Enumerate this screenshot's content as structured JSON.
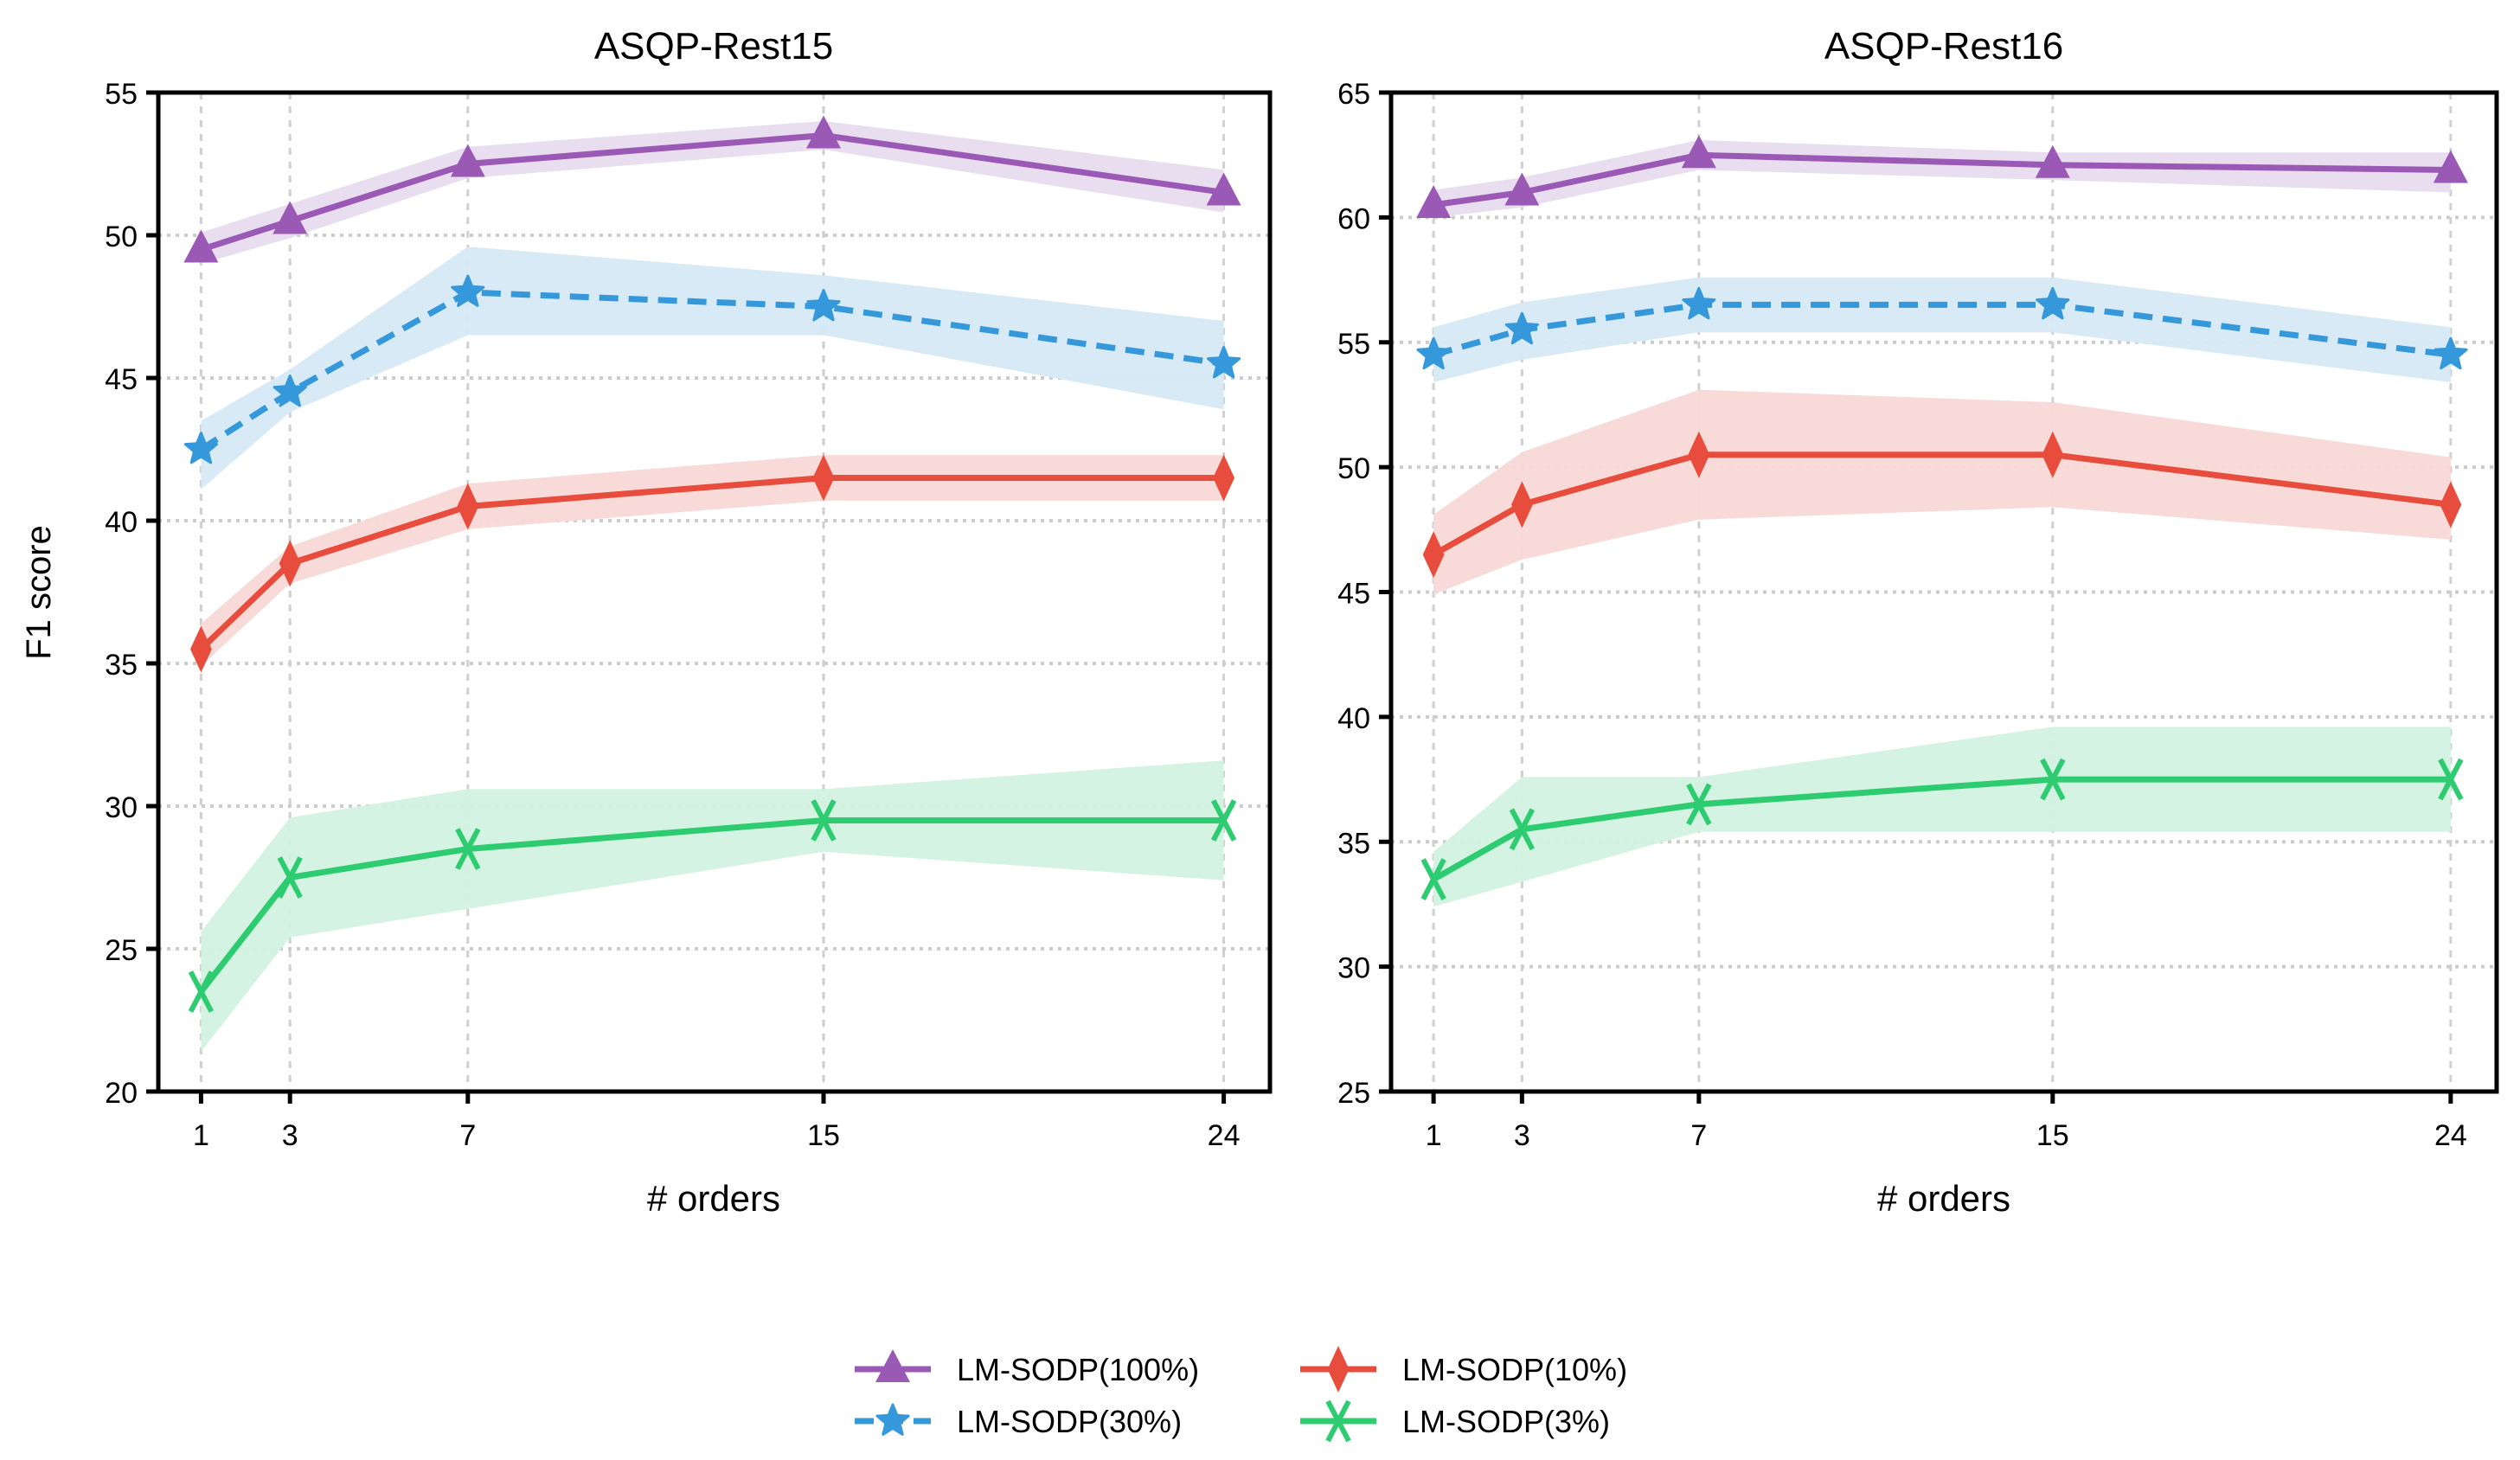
{
  "chart_data": [
    {
      "type": "line",
      "title": "ASQP-Rest15",
      "xlabel": "# orders",
      "ylabel": "F1 score",
      "x": [
        1,
        3,
        7,
        15,
        24
      ],
      "xticks": [
        "1",
        "3",
        "7",
        "15",
        "24"
      ],
      "xlim": [
        0,
        25
      ],
      "ylim": [
        20,
        55
      ],
      "yticks": [
        "20",
        "25",
        "30",
        "35",
        "40",
        "45",
        "50",
        "55"
      ],
      "grid": true,
      "series": [
        {
          "name": "LM-SODP(100%)",
          "marker": "triangle",
          "dash": false,
          "color": "#9b59b6",
          "band_color": "#e8dcef",
          "values": [
            49.5,
            50.5,
            52.5,
            53.5,
            51.5
          ],
          "lower": [
            49.0,
            49.9,
            52.0,
            53.0,
            50.8
          ],
          "upper": [
            50.1,
            51.1,
            53.1,
            54.0,
            52.3
          ]
        },
        {
          "name": "LM-SODP(30%)",
          "marker": "star",
          "dash": true,
          "color": "#3498db",
          "band_color": "#d6e9f6",
          "values": [
            42.5,
            44.5,
            48.0,
            47.5,
            45.5
          ],
          "lower": [
            41.1,
            43.8,
            46.5,
            46.5,
            43.9
          ],
          "upper": [
            43.5,
            45.3,
            49.6,
            48.6,
            47.0
          ]
        },
        {
          "name": "LM-SODP(10%)",
          "marker": "diamond",
          "dash": false,
          "color": "#e74c3c",
          "band_color": "#f8d9d6",
          "values": [
            35.5,
            38.5,
            40.5,
            41.5,
            41.5
          ],
          "lower": [
            34.9,
            37.8,
            39.7,
            40.7,
            40.7
          ],
          "upper": [
            36.4,
            39.1,
            41.3,
            42.3,
            42.3
          ]
        },
        {
          "name": "LM-SODP(3%)",
          "marker": "x",
          "dash": false,
          "color": "#2ecc71",
          "band_color": "#d3f2e0",
          "values": [
            23.5,
            27.5,
            28.5,
            29.5,
            29.5
          ],
          "lower": [
            21.4,
            25.4,
            26.4,
            28.4,
            27.4
          ],
          "upper": [
            25.6,
            29.6,
            30.6,
            30.6,
            31.6
          ]
        }
      ]
    },
    {
      "type": "line",
      "title": "ASQP-Rest16",
      "xlabel": "# orders",
      "ylabel": "",
      "x": [
        1,
        3,
        7,
        15,
        24
      ],
      "xticks": [
        "1",
        "3",
        "7",
        "15",
        "24"
      ],
      "xlim": [
        0,
        25
      ],
      "ylim": [
        25,
        65
      ],
      "yticks": [
        "25",
        "30",
        "35",
        "40",
        "45",
        "50",
        "55",
        "60",
        "65"
      ],
      "grid": true,
      "series": [
        {
          "name": "LM-SODP(100%)",
          "marker": "triangle",
          "dash": false,
          "color": "#9b59b6",
          "band_color": "#e8dcef",
          "values": [
            60.5,
            61.0,
            62.5,
            62.1,
            61.9
          ],
          "lower": [
            60.0,
            60.4,
            61.9,
            61.5,
            61.0
          ],
          "upper": [
            61.1,
            61.6,
            63.1,
            62.6,
            62.6
          ]
        },
        {
          "name": "LM-SODP(30%)",
          "marker": "star",
          "dash": true,
          "color": "#3498db",
          "band_color": "#d6e9f6",
          "values": [
            54.5,
            55.5,
            56.5,
            56.5,
            54.5
          ],
          "lower": [
            53.4,
            54.3,
            55.4,
            55.4,
            53.4
          ],
          "upper": [
            55.6,
            56.6,
            57.6,
            57.6,
            55.6
          ]
        },
        {
          "name": "LM-SODP(10%)",
          "marker": "diamond",
          "dash": false,
          "color": "#e74c3c",
          "band_color": "#f8d9d6",
          "values": [
            46.5,
            48.5,
            50.5,
            50.5,
            48.5
          ],
          "lower": [
            44.9,
            46.3,
            47.9,
            48.4,
            47.1
          ],
          "upper": [
            48.1,
            50.6,
            53.1,
            52.6,
            50.4
          ]
        },
        {
          "name": "LM-SODP(3%)",
          "marker": "x",
          "dash": false,
          "color": "#2ecc71",
          "band_color": "#d3f2e0",
          "values": [
            33.5,
            35.5,
            36.5,
            37.5,
            37.5
          ],
          "lower": [
            32.4,
            33.4,
            35.4,
            35.4,
            35.4
          ],
          "upper": [
            34.6,
            37.6,
            37.6,
            39.6,
            39.6
          ]
        }
      ]
    }
  ],
  "legend": {
    "placement": "bottom-center",
    "items": [
      {
        "label": "LM-SODP(100%)",
        "marker": "triangle",
        "dash": false,
        "color": "#9b59b6"
      },
      {
        "label": "LM-SODP(10%)",
        "marker": "diamond",
        "dash": false,
        "color": "#e74c3c"
      },
      {
        "label": "LM-SODP(30%)",
        "marker": "star",
        "dash": true,
        "color": "#3498db"
      },
      {
        "label": "LM-SODP(3%)",
        "marker": "x",
        "dash": false,
        "color": "#2ecc71"
      }
    ]
  }
}
